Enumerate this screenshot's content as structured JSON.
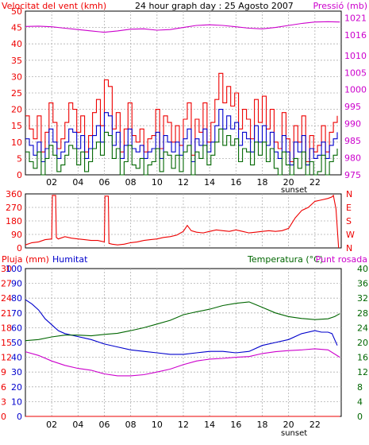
{
  "title": "24 hour graph day : 25 Agosto 2007",
  "colors": {
    "red": "#ee0000",
    "blue": "#0000cc",
    "green": "#006600",
    "magenta": "#cc00cc",
    "grid": "#b0b0b0",
    "frame": "#000000"
  },
  "chart_data": [
    {
      "type": "line",
      "panel": "wind-pressure",
      "left_axis_label": "Velocitat del vent (kmh)",
      "right_axis_label": "Pressió (mb)",
      "x_ticks": [
        "02",
        "04",
        "06",
        "08",
        "10",
        "12",
        "14",
        "16",
        "18",
        "20",
        "22"
      ],
      "x_extra_label": "sunset",
      "left_ylim": [
        0,
        50
      ],
      "left_ticks": [
        "0",
        "5",
        "10",
        "15",
        "20",
        "25",
        "30",
        "35",
        "40",
        "45",
        "50"
      ],
      "right_ylim": [
        975,
        1023
      ],
      "right_ticks": [
        "975",
        "980",
        "985",
        "990",
        "995",
        "1000",
        "1005",
        "1010",
        "1016",
        "1021"
      ],
      "grid": true,
      "series": [
        {
          "name": "gust",
          "color": "red",
          "axis": "left",
          "x": [
            0,
            0.3,
            0.6,
            0.9,
            1.2,
            1.5,
            1.8,
            2.1,
            2.4,
            2.7,
            3.0,
            3.3,
            3.6,
            3.9,
            4.2,
            4.5,
            4.8,
            5.1,
            5.4,
            5.7,
            6.0,
            6.3,
            6.6,
            6.9,
            7.2,
            7.5,
            7.8,
            8.1,
            8.4,
            8.7,
            9.0,
            9.3,
            9.6,
            9.9,
            10.2,
            10.5,
            10.8,
            11.1,
            11.4,
            11.7,
            12.0,
            12.3,
            12.6,
            12.9,
            13.2,
            13.5,
            13.8,
            14.1,
            14.4,
            14.7,
            15.0,
            15.3,
            15.6,
            15.9,
            16.2,
            16.5,
            16.8,
            17.1,
            17.4,
            17.7,
            18.0,
            18.3,
            18.6,
            18.9,
            19.2,
            19.5,
            19.8,
            20.1,
            20.4,
            20.7,
            21.0,
            21.3,
            21.6,
            21.9,
            22.2,
            22.5,
            22.8,
            23.1,
            23.4,
            23.7
          ],
          "y": [
            18,
            14,
            11,
            18,
            7,
            13,
            22,
            16,
            8,
            11,
            16,
            22,
            20,
            13,
            18,
            7,
            12,
            19,
            23,
            15,
            29,
            27,
            14,
            19,
            7,
            14,
            22,
            12,
            10,
            14,
            7,
            11,
            12,
            20,
            8,
            18,
            16,
            10,
            15,
            9,
            17,
            22,
            6,
            17,
            13,
            22,
            10,
            16,
            23,
            31,
            22,
            27,
            21,
            25,
            14,
            20,
            17,
            11,
            23,
            16,
            24,
            14,
            20,
            10,
            8,
            19,
            11,
            4,
            15,
            10,
            18,
            4,
            12,
            7,
            9,
            15,
            7,
            13,
            16,
            18
          ]
        },
        {
          "name": "average",
          "color": "blue",
          "axis": "left",
          "x": [
            0,
            0.3,
            0.6,
            0.9,
            1.2,
            1.5,
            1.8,
            2.1,
            2.4,
            2.7,
            3.0,
            3.3,
            3.6,
            3.9,
            4.2,
            4.5,
            4.8,
            5.1,
            5.4,
            5.7,
            6.0,
            6.3,
            6.6,
            6.9,
            7.2,
            7.5,
            7.8,
            8.1,
            8.4,
            8.7,
            9.0,
            9.3,
            9.6,
            9.9,
            10.2,
            10.5,
            10.8,
            11.1,
            11.4,
            11.7,
            12.0,
            12.3,
            12.6,
            12.9,
            13.2,
            13.5,
            13.8,
            14.1,
            14.4,
            14.7,
            15.0,
            15.3,
            15.6,
            15.9,
            16.2,
            16.5,
            16.8,
            17.1,
            17.4,
            17.7,
            18.0,
            18.3,
            18.6,
            18.9,
            19.2,
            19.5,
            19.8,
            20.1,
            20.4,
            20.7,
            21.0,
            21.3,
            21.6,
            21.9,
            22.2,
            22.5,
            22.8,
            23.1,
            23.4,
            23.7
          ],
          "y": [
            11,
            9,
            6,
            10,
            4,
            8,
            14,
            10,
            5,
            7,
            10,
            14,
            13,
            8,
            12,
            5,
            8,
            12,
            15,
            10,
            19,
            18,
            9,
            13,
            5,
            9,
            14,
            8,
            7,
            9,
            5,
            7,
            8,
            13,
            5,
            12,
            10,
            7,
            10,
            6,
            11,
            14,
            4,
            11,
            9,
            14,
            7,
            10,
            15,
            20,
            14,
            18,
            14,
            16,
            9,
            13,
            11,
            7,
            15,
            10,
            15,
            9,
            13,
            7,
            5,
            12,
            7,
            3,
            10,
            7,
            12,
            3,
            8,
            5,
            6,
            10,
            5,
            9,
            11,
            13
          ]
        },
        {
          "name": "low",
          "color": "green",
          "axis": "left",
          "x": [
            0,
            0.3,
            0.6,
            0.9,
            1.2,
            1.5,
            1.8,
            2.1,
            2.4,
            2.7,
            3.0,
            3.3,
            3.6,
            3.9,
            4.2,
            4.5,
            4.8,
            5.1,
            5.4,
            5.7,
            6.0,
            6.3,
            6.6,
            6.9,
            7.2,
            7.5,
            7.8,
            8.1,
            8.4,
            8.7,
            9.0,
            9.3,
            9.6,
            9.9,
            10.2,
            10.5,
            10.8,
            11.1,
            11.4,
            11.7,
            12.0,
            12.3,
            12.6,
            12.9,
            13.2,
            13.5,
            13.8,
            14.1,
            14.4,
            14.7,
            15.0,
            15.3,
            15.6,
            15.9,
            16.2,
            16.5,
            16.8,
            17.1,
            17.4,
            17.7,
            18.0,
            18.3,
            18.6,
            18.9,
            19.2,
            19.5,
            19.8,
            20.1,
            20.4,
            20.7,
            21.0,
            21.3,
            21.6,
            21.9,
            22.2,
            22.5,
            22.8,
            23.1,
            23.4,
            23.7
          ],
          "y": [
            7,
            4,
            2,
            7,
            0,
            5,
            9,
            6,
            1,
            3,
            6,
            9,
            8,
            3,
            7,
            1,
            4,
            8,
            10,
            6,
            13,
            12,
            5,
            8,
            0,
            4,
            9,
            3,
            2,
            5,
            0,
            3,
            4,
            8,
            1,
            7,
            6,
            2,
            6,
            1,
            7,
            9,
            0,
            7,
            5,
            9,
            3,
            6,
            10,
            14,
            9,
            12,
            9,
            11,
            4,
            8,
            7,
            3,
            10,
            6,
            10,
            4,
            8,
            2,
            0,
            7,
            3,
            0,
            5,
            2,
            7,
            0,
            4,
            0,
            1,
            6,
            0,
            4,
            6,
            8
          ]
        },
        {
          "name": "pressure",
          "color": "magenta",
          "axis": "right",
          "x": [
            0,
            1,
            2,
            3,
            4,
            5,
            6,
            7,
            8,
            9,
            10,
            11,
            12,
            13,
            14,
            15,
            16,
            17,
            18,
            19,
            20,
            21,
            22,
            23,
            23.9
          ],
          "y": [
            1018.5,
            1018.6,
            1018.4,
            1018.0,
            1017.6,
            1017.2,
            1016.8,
            1017.2,
            1017.7,
            1017.8,
            1017.4,
            1017.6,
            1018.2,
            1018.8,
            1019.0,
            1018.8,
            1018.4,
            1018.0,
            1017.8,
            1018.2,
            1018.8,
            1019.4,
            1019.8,
            1019.9,
            1019.8
          ]
        }
      ]
    },
    {
      "type": "line",
      "panel": "wind-direction",
      "left_ylim": [
        0,
        360
      ],
      "left_ticks": [
        "0",
        "90",
        "180",
        "270",
        "360"
      ],
      "right_ticks": [
        "N",
        "W",
        "S",
        "E",
        "N"
      ],
      "grid": true,
      "series": [
        {
          "name": "direction",
          "color": "red",
          "axis": "left",
          "x": [
            0,
            0.5,
            1.0,
            1.5,
            2.0,
            2.05,
            2.3,
            2.35,
            2.5,
            3.0,
            3.5,
            4.0,
            4.5,
            5.0,
            5.5,
            6.0,
            6.05,
            6.3,
            6.35,
            6.6,
            7.0,
            7.5,
            8.0,
            8.5,
            9.0,
            9.5,
            10.0,
            10.5,
            11.0,
            11.5,
            12.0,
            12.3,
            12.6,
            13.0,
            13.5,
            14.0,
            14.5,
            15.0,
            15.5,
            16.0,
            16.5,
            17.0,
            17.5,
            18.0,
            18.5,
            19.0,
            19.5,
            20.0,
            20.5,
            21.0,
            21.5,
            22.0,
            22.5,
            23.0,
            23.3,
            23.4,
            23.6,
            23.8
          ],
          "y": [
            20,
            35,
            40,
            55,
            60,
            350,
            350,
            70,
            60,
            75,
            65,
            60,
            55,
            50,
            50,
            40,
            345,
            345,
            30,
            25,
            20,
            25,
            35,
            40,
            50,
            55,
            60,
            70,
            75,
            85,
            110,
            150,
            115,
            105,
            100,
            110,
            120,
            115,
            110,
            120,
            110,
            100,
            105,
            110,
            115,
            110,
            115,
            130,
            200,
            250,
            270,
            310,
            320,
            330,
            340,
            350,
            260,
            0
          ]
        }
      ]
    },
    {
      "type": "line",
      "panel": "humidity-temperature",
      "left_axis_label_1": "Pluja (mm)",
      "left_axis_label_2": "Humitat",
      "right_axis_label": "Temperatura (°C)",
      "right_axis_label_2": "Punt rosada",
      "x_ticks": [
        "02",
        "04",
        "06",
        "08",
        "10",
        "12",
        "14",
        "16",
        "18",
        "20",
        "22"
      ],
      "x_extra_label": "sunset",
      "rain_ticks": [
        "0",
        "3",
        "6",
        "9",
        "12",
        "15",
        "18",
        "21",
        "24",
        "27",
        "30"
      ],
      "humidity_ticks": [
        "0",
        "10",
        "20",
        "30",
        "40",
        "50",
        "60",
        "70",
        "80",
        "90",
        "100"
      ],
      "temp_ticks": [
        "0",
        "4",
        "8",
        "12",
        "16",
        "20",
        "24",
        "28",
        "32",
        "36",
        "40"
      ],
      "humidity_ylim": [
        0,
        100
      ],
      "temp_ylim": [
        0,
        40
      ],
      "grid": true,
      "series": [
        {
          "name": "Humitat",
          "color": "blue",
          "axis": "humidity",
          "x": [
            0,
            0.5,
            1.0,
            1.5,
            2.0,
            2.5,
            3.0,
            3.5,
            4.0,
            4.5,
            5.0,
            6.0,
            7.0,
            8.0,
            9.0,
            10.0,
            11.0,
            12.0,
            13.0,
            14.0,
            15.0,
            16.0,
            17.0,
            18.0,
            19.0,
            20.0,
            21.0,
            22.0,
            22.5,
            23.0,
            23.3,
            23.7
          ],
          "y": [
            79,
            76,
            72,
            66,
            62,
            58,
            56,
            55,
            54,
            53,
            52,
            49,
            47,
            45,
            44,
            43,
            42,
            42,
            43,
            44,
            44,
            43,
            44,
            48,
            50,
            52,
            56,
            58,
            57,
            57,
            56,
            48
          ]
        },
        {
          "name": "Temperatura",
          "color": "green",
          "axis": "temp",
          "x": [
            0,
            1,
            2,
            3,
            4,
            5,
            6,
            7,
            8,
            9,
            10,
            11,
            12,
            13,
            14,
            15,
            16,
            17,
            18,
            19,
            20,
            21,
            22,
            23,
            23.5,
            23.9
          ],
          "y": [
            20.5,
            20.8,
            21.5,
            22.0,
            22.0,
            21.8,
            22.2,
            22.5,
            23.2,
            24.0,
            25.0,
            26.0,
            27.5,
            28.3,
            29.0,
            30.0,
            30.6,
            31.0,
            29.5,
            28.0,
            27.0,
            26.5,
            26.2,
            26.4,
            27.0,
            27.8
          ]
        },
        {
          "name": "Punt rosada",
          "color": "magenta",
          "axis": "temp",
          "x": [
            0,
            1,
            2,
            3,
            4,
            5,
            6,
            7,
            8,
            9,
            10,
            11,
            12,
            13,
            14,
            15,
            16,
            17,
            18,
            19,
            20,
            21,
            22,
            23,
            23.9
          ],
          "y": [
            17.5,
            16.5,
            15.0,
            13.8,
            13.0,
            12.5,
            11.5,
            11.0,
            11.0,
            11.3,
            12.0,
            12.8,
            14.0,
            15.0,
            15.5,
            15.7,
            16.0,
            16.2,
            17.0,
            17.5,
            17.8,
            18.0,
            18.3,
            18.0,
            16.0
          ]
        },
        {
          "name": "rain",
          "color": "red",
          "axis": "rain",
          "x": [
            0,
            23.9
          ],
          "y": [
            0,
            0
          ]
        }
      ]
    }
  ]
}
